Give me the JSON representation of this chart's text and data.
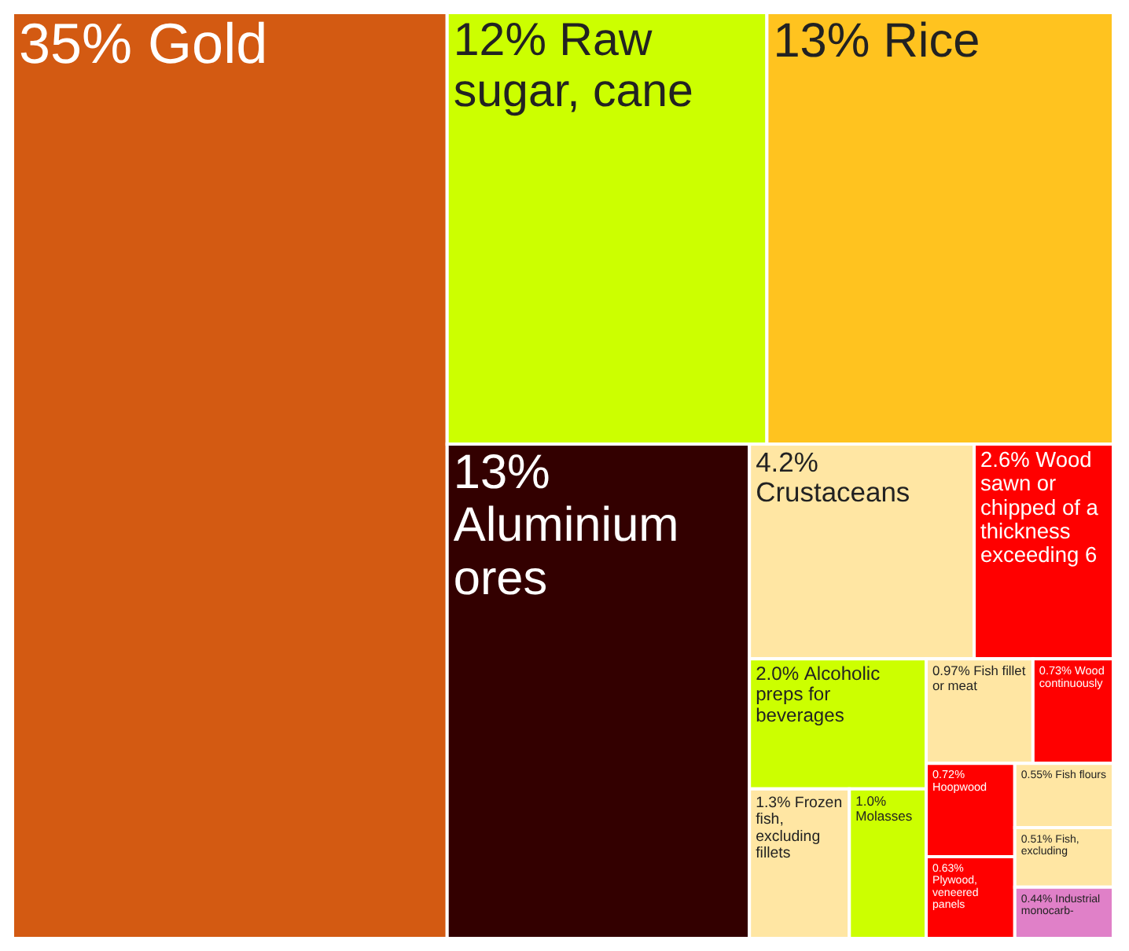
{
  "chart_data": {
    "type": "other",
    "categories": [
      "Gold",
      "Raw sugar, cane",
      "Rice",
      "Aluminium ores",
      "Crustaceans",
      "Wood sawn or chipped of a thickness exceeding 6",
      "Alcoholic preps for beverages",
      "Frozen fish, excluding fillets",
      "Molasses",
      "Fish fillet or meat",
      "Wood continuously",
      "Hoopwood",
      "Plywood, veneered panels",
      "Fish flours",
      "Fish, excluding",
      "Industrial monocarb-"
    ],
    "values": [
      35,
      12,
      13,
      13,
      4.2,
      2.6,
      2.0,
      1.3,
      1.0,
      0.97,
      0.73,
      0.72,
      0.63,
      0.55,
      0.51,
      0.44
    ],
    "value_labels": [
      "35%",
      "12%",
      "13%",
      "13%",
      "4.2%",
      "2.6%",
      "2.0%",
      "1.3%",
      "1.0%",
      "0.97%",
      "0.73%",
      "0.72%",
      "0.63%",
      "0.55%",
      "0.51%",
      "0.44%"
    ],
    "colors": [
      "#d35a12",
      "#ccff00",
      "#ffc31f",
      "#330000",
      "#ffe6a3",
      "#ff0000",
      "#ccff00",
      "#ffe6a3",
      "#ccff00",
      "#ffe6a3",
      "#ff0000",
      "#ff0000",
      "#ff0000",
      "#ffe6a3",
      "#ffe6a3",
      "#e080c8"
    ]
  }
}
